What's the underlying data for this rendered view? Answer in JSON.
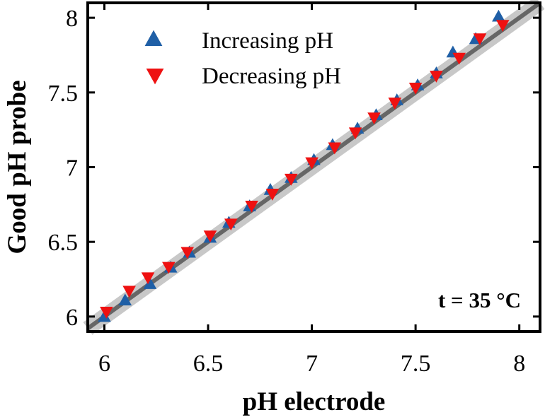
{
  "chart_data": {
    "type": "scatter",
    "xlabel": "pH electrode",
    "ylabel": "Good pH probe",
    "xlim": [
      5.92,
      8.1
    ],
    "ylim": [
      5.9,
      8.1
    ],
    "xticks": [
      6,
      6.5,
      7,
      7.5,
      8
    ],
    "yticks": [
      6,
      6.5,
      7,
      7.5,
      8
    ],
    "xtick_labels": [
      "6",
      "6.5",
      "7",
      "7.5",
      "8"
    ],
    "ytick_labels": [
      "6",
      "6.5",
      "7",
      "7.5",
      "8"
    ],
    "grid": false,
    "legend_position": "top-left",
    "annotation": "t = 35 °C",
    "fit_line": {
      "name": "identity",
      "x": [
        5.92,
        8.1
      ],
      "y": [
        5.92,
        8.1
      ]
    },
    "series": [
      {
        "name": "Increasing pH",
        "marker": "triangle-up",
        "color": "#1f5fa6",
        "x": [
          6.0,
          6.1,
          6.22,
          6.32,
          6.41,
          6.51,
          6.6,
          6.7,
          6.8,
          6.9,
          7.01,
          7.1,
          7.22,
          7.31,
          7.41,
          7.51,
          7.6,
          7.68,
          7.79,
          7.9
        ],
        "y": [
          6.0,
          6.11,
          6.22,
          6.33,
          6.43,
          6.53,
          6.63,
          6.74,
          6.85,
          6.93,
          7.05,
          7.15,
          7.26,
          7.35,
          7.45,
          7.55,
          7.63,
          7.77,
          7.86,
          8.01
        ]
      },
      {
        "name": "Decreasing pH",
        "marker": "triangle-down",
        "color": "#ee1111",
        "x": [
          6.01,
          6.12,
          6.21,
          6.31,
          6.4,
          6.51,
          6.61,
          6.71,
          6.81,
          6.9,
          7.0,
          7.11,
          7.21,
          7.3,
          7.4,
          7.5,
          7.6,
          7.71,
          7.81,
          7.92
        ],
        "y": [
          6.03,
          6.17,
          6.26,
          6.33,
          6.43,
          6.54,
          6.62,
          6.74,
          6.82,
          6.92,
          7.03,
          7.13,
          7.23,
          7.33,
          7.43,
          7.53,
          7.61,
          7.73,
          7.86,
          7.95
        ]
      }
    ]
  }
}
